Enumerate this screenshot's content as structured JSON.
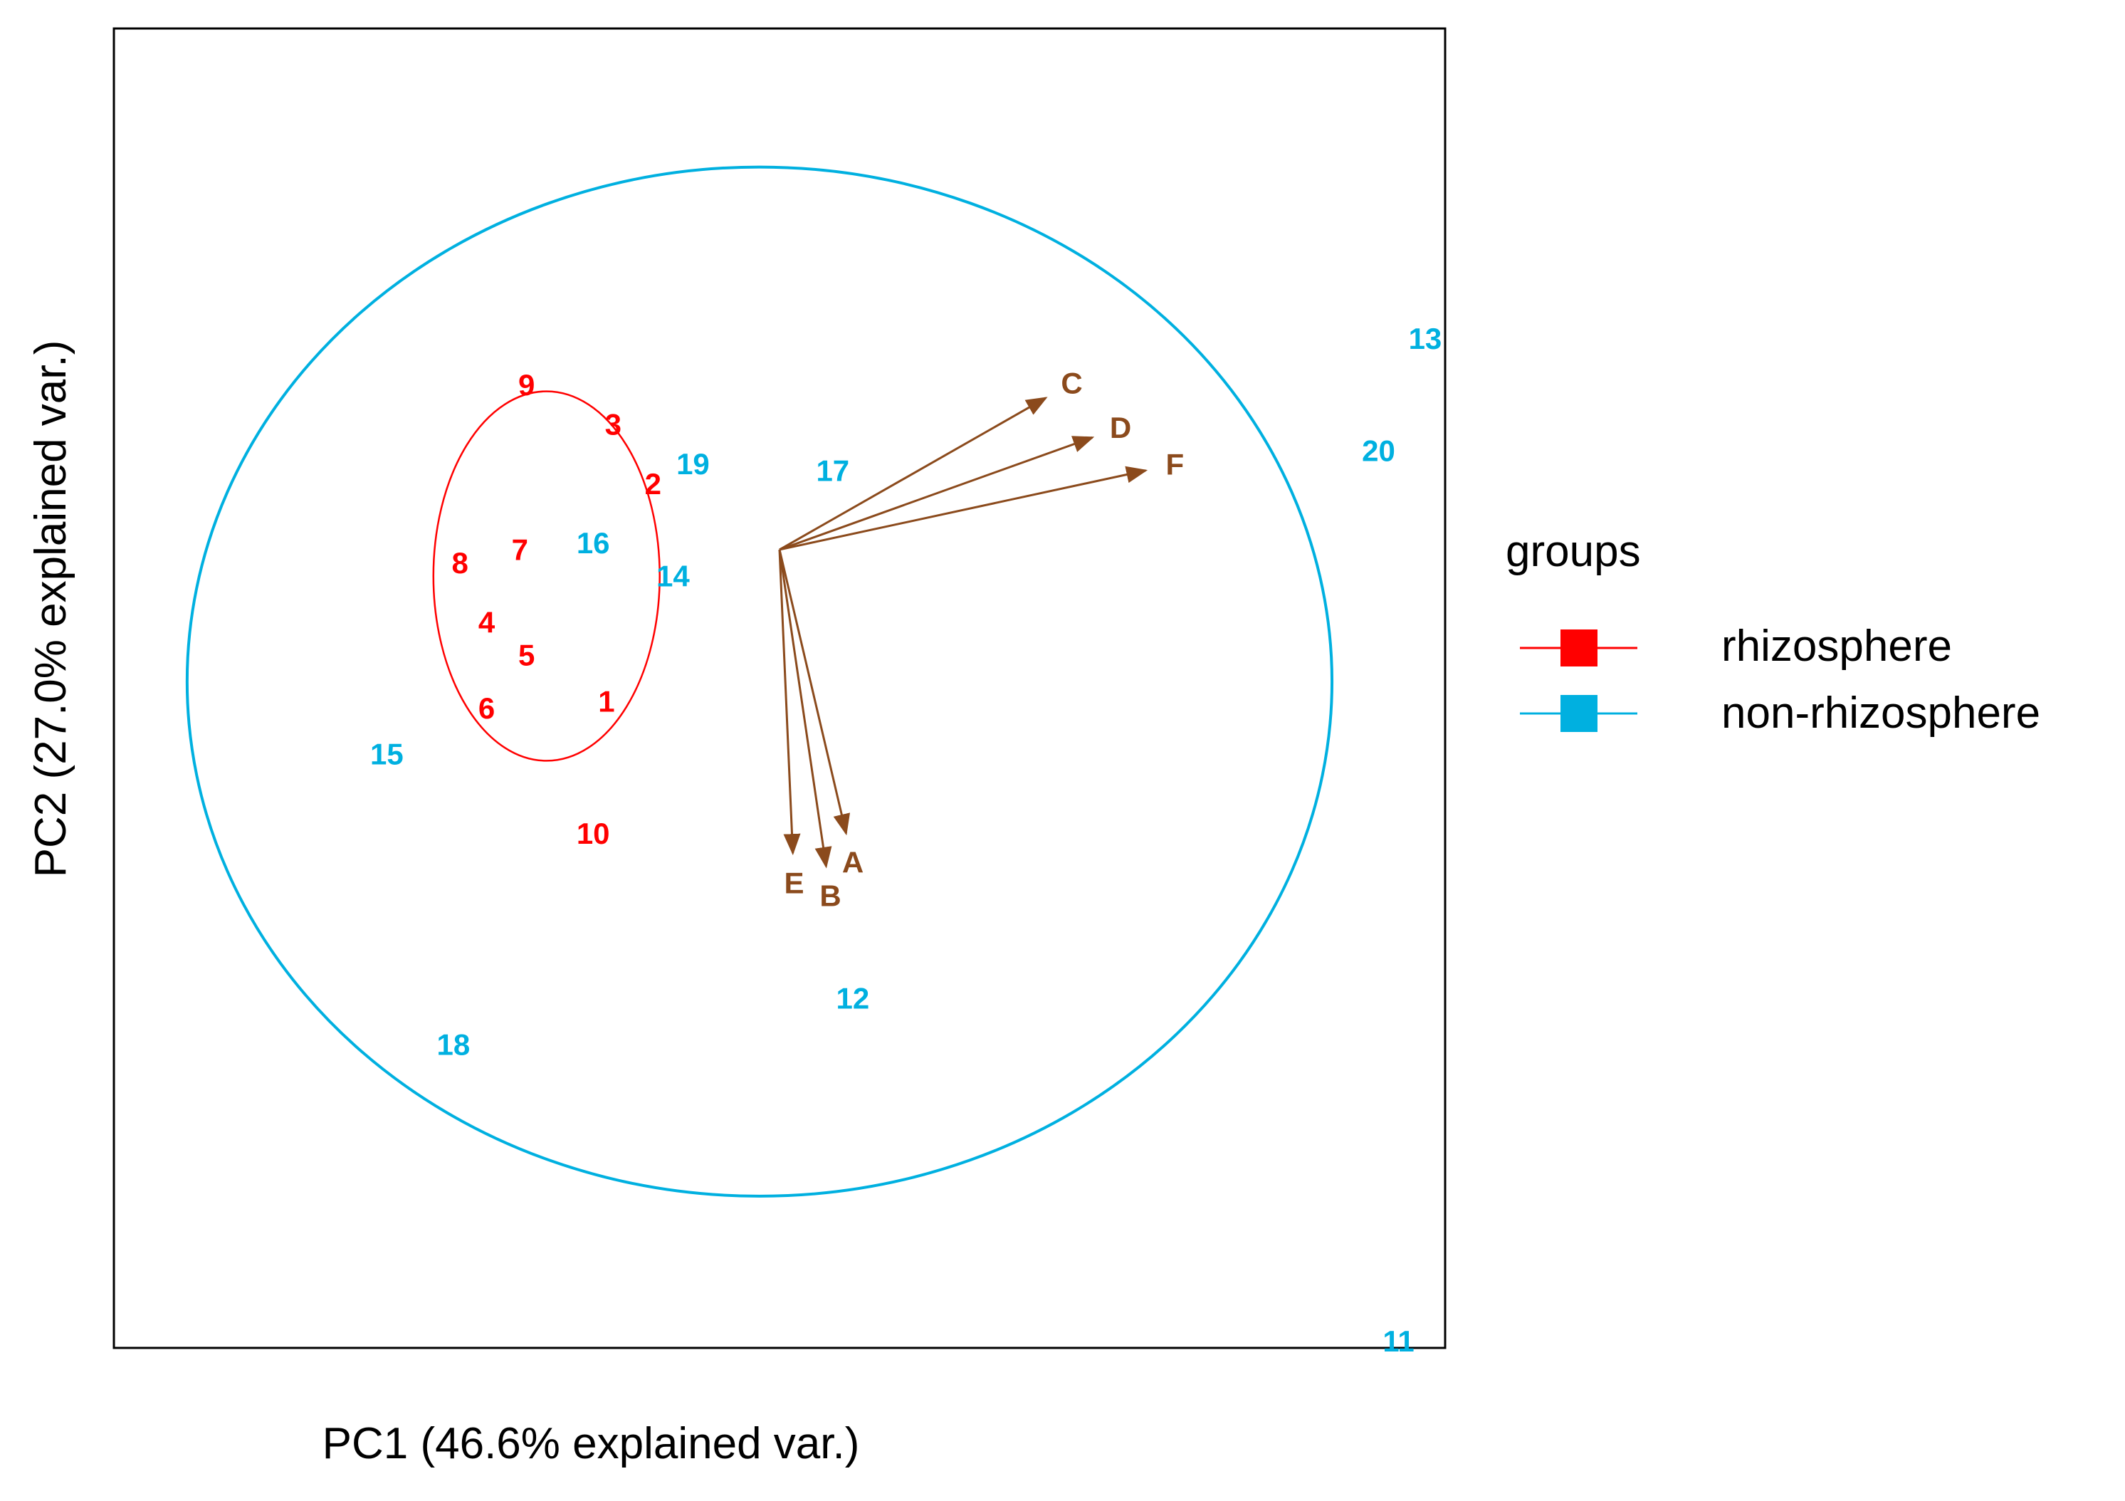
{
  "chart_data": {
    "type": "scatter",
    "subtype": "pca-biplot",
    "xlabel": "PC1 (46.6% explained var.)",
    "ylabel": "PC2 (27.0% explained var.)",
    "xlim": [
      -1,
      1
    ],
    "ylim": [
      -1,
      1
    ],
    "grid": false,
    "ticks": false,
    "legend": {
      "title": "groups",
      "placement": "right",
      "entries": [
        {
          "label": "rhizosphere",
          "color": "#ff0000"
        },
        {
          "label": "non-rhizosphere",
          "color": "#00b0e0"
        }
      ]
    },
    "series": [
      {
        "name": "rhizosphere",
        "color": "#ff0000",
        "points": [
          {
            "label": "1",
            "x": -0.26,
            "y": -0.02
          },
          {
            "label": "2",
            "x": -0.19,
            "y": 0.31
          },
          {
            "label": "3",
            "x": -0.25,
            "y": 0.4
          },
          {
            "label": "4",
            "x": -0.44,
            "y": 0.1
          },
          {
            "label": "5",
            "x": -0.38,
            "y": 0.05
          },
          {
            "label": "6",
            "x": -0.44,
            "y": -0.03
          },
          {
            "label": "7",
            "x": -0.39,
            "y": 0.21
          },
          {
            "label": "8",
            "x": -0.48,
            "y": 0.19
          },
          {
            "label": "9",
            "x": -0.38,
            "y": 0.46
          },
          {
            "label": "10",
            "x": -0.28,
            "y": -0.22
          }
        ],
        "ellipse": {
          "cx": -0.35,
          "cy": 0.17,
          "rx": 0.17,
          "ry": 0.28
        }
      },
      {
        "name": "non-rhizosphere",
        "color": "#00b0e0",
        "points": [
          {
            "label": "11",
            "x": 0.93,
            "y": -0.99
          },
          {
            "label": "12",
            "x": 0.11,
            "y": -0.47
          },
          {
            "label": "13",
            "x": 0.97,
            "y": 0.53
          },
          {
            "label": "14",
            "x": -0.16,
            "y": 0.17
          },
          {
            "label": "15",
            "x": -0.59,
            "y": -0.1
          },
          {
            "label": "16",
            "x": -0.28,
            "y": 0.22
          },
          {
            "label": "17",
            "x": 0.08,
            "y": 0.33
          },
          {
            "label": "18",
            "x": -0.49,
            "y": -0.54
          },
          {
            "label": "19",
            "x": -0.13,
            "y": 0.34
          },
          {
            "label": "20",
            "x": 0.9,
            "y": 0.36
          }
        ],
        "ellipse": {
          "cx": -0.03,
          "cy": 0.01,
          "rx": 0.86,
          "ry": 0.78
        }
      }
    ],
    "loadings": {
      "color": "#8b4a1c",
      "origin": [
        0.0,
        0.21
      ],
      "vectors": [
        {
          "label": "A",
          "x": 0.1,
          "y": -0.22
        },
        {
          "label": "B",
          "x": 0.07,
          "y": -0.27
        },
        {
          "label": "C",
          "x": 0.4,
          "y": 0.44
        },
        {
          "label": "D",
          "x": 0.47,
          "y": 0.38
        },
        {
          "label": "E",
          "x": 0.02,
          "y": -0.25
        },
        {
          "label": "F",
          "x": 0.55,
          "y": 0.33
        }
      ]
    }
  }
}
